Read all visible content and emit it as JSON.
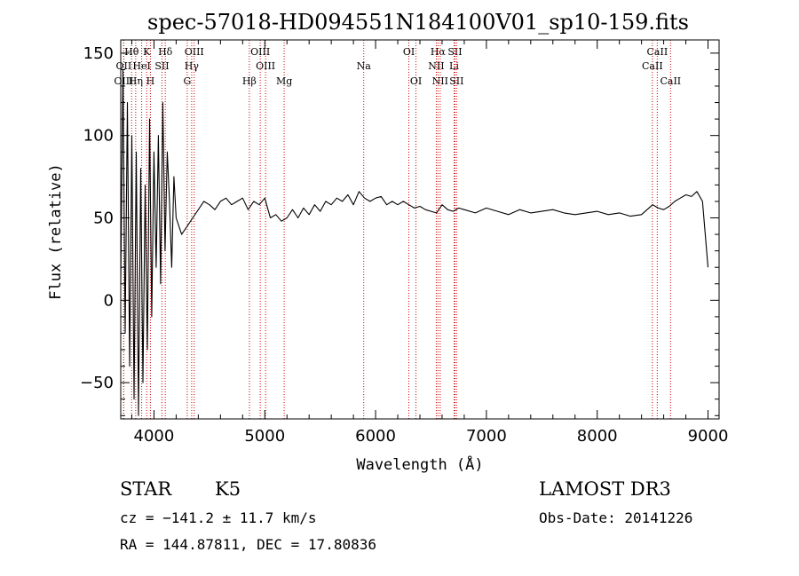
{
  "chart_data": {
    "type": "line",
    "title": "spec-57018-HD094551N184100V01_sp10-159.fits",
    "xlabel": "Wavelength (Å)",
    "ylabel": "Flux (relative)",
    "xlim": [
      3700,
      9100
    ],
    "ylim": [
      -72,
      158
    ],
    "xticks": [
      4000,
      5000,
      6000,
      7000,
      8000,
      9000
    ],
    "yticks": [
      -50,
      0,
      50,
      100,
      150
    ],
    "grid": false,
    "legend": "none",
    "line_color": "#000000",
    "marker_color": "#cc0000",
    "series": [
      {
        "x": [
          3700,
          3720,
          3740,
          3760,
          3780,
          3800,
          3820,
          3840,
          3860,
          3880,
          3900,
          3920,
          3940,
          3960,
          3980,
          4000,
          4020,
          4040,
          4060,
          4080,
          4100,
          4120,
          4140,
          4160,
          4180,
          4200,
          4250,
          4300,
          4350,
          4400,
          4450,
          4500,
          4550,
          4600,
          4650,
          4700,
          4750,
          4800,
          4850,
          4900,
          4950,
          5000,
          5050,
          5100,
          5150,
          5200,
          5250,
          5300,
          5350,
          5400,
          5450,
          5500,
          5550,
          5600,
          5650,
          5700,
          5750,
          5800,
          5850,
          5900,
          5950,
          6000,
          6050,
          6100,
          6150,
          6200,
          6250,
          6300,
          6350,
          6400,
          6450,
          6500,
          6550,
          6600,
          6650,
          6700,
          6750,
          6800,
          6900,
          7000,
          7100,
          7200,
          7300,
          7400,
          7500,
          7600,
          7700,
          7800,
          7900,
          8000,
          8100,
          8200,
          8300,
          8400,
          8450,
          8500,
          8550,
          8600,
          8650,
          8700,
          8750,
          8800,
          8850,
          8900,
          8950,
          9000
        ],
        "y": [
          10,
          140,
          -20,
          120,
          -40,
          100,
          -60,
          90,
          -70,
          80,
          -50,
          70,
          -30,
          110,
          -10,
          90,
          20,
          100,
          10,
          120,
          30,
          90,
          60,
          20,
          75,
          50,
          40,
          45,
          50,
          55,
          60,
          58,
          55,
          60,
          62,
          58,
          60,
          62,
          55,
          60,
          58,
          62,
          50,
          52,
          48,
          50,
          55,
          50,
          56,
          52,
          58,
          54,
          60,
          58,
          62,
          60,
          64,
          58,
          66,
          62,
          60,
          62,
          63,
          58,
          60,
          58,
          60,
          58,
          56,
          57,
          55,
          54,
          53,
          58,
          55,
          54,
          56,
          55,
          53,
          56,
          54,
          52,
          55,
          53,
          54,
          55,
          53,
          52,
          53,
          54,
          52,
          53,
          51,
          52,
          55,
          58,
          56,
          55,
          57,
          60,
          62,
          64,
          63,
          66,
          60,
          20
        ]
      }
    ],
    "line_markers": [
      {
        "label": "Hθ",
        "row": 1,
        "x": 3798
      },
      {
        "label": "K",
        "row": 1,
        "x": 3934
      },
      {
        "label": "Hδ",
        "row": 1,
        "x": 4102
      },
      {
        "label": "OIII",
        "row": 1,
        "x": 4363
      },
      {
        "label": "OIII",
        "row": 1,
        "x": 4959
      },
      {
        "label": "OI",
        "row": 1,
        "x": 6300
      },
      {
        "label": "Hα",
        "row": 1,
        "x": 6563
      },
      {
        "label": "SII",
        "row": 1,
        "x": 6716
      },
      {
        "label": "CaII",
        "row": 1,
        "x": 8542
      },
      {
        "label": "OII",
        "row": 2,
        "x": 3727
      },
      {
        "label": "HeI",
        "row": 2,
        "x": 3889
      },
      {
        "label": "SII",
        "row": 2,
        "x": 4072
      },
      {
        "label": "Hγ",
        "row": 2,
        "x": 4340
      },
      {
        "label": "OIII",
        "row": 2,
        "x": 5007
      },
      {
        "label": "Na",
        "row": 2,
        "x": 5893
      },
      {
        "label": "NII",
        "row": 2,
        "x": 6548
      },
      {
        "label": "Li",
        "row": 2,
        "x": 6708
      },
      {
        "label": "CaII",
        "row": 2,
        "x": 8498
      },
      {
        "label": "OIII",
        "row": 3,
        "x": 3727
      },
      {
        "label": "Hη",
        "row": 3,
        "x": 3835
      },
      {
        "label": "H",
        "row": 3,
        "x": 3968
      },
      {
        "label": "G",
        "row": 3,
        "x": 4300
      },
      {
        "label": "Hβ",
        "row": 3,
        "x": 4861
      },
      {
        "label": "Mg",
        "row": 3,
        "x": 5175
      },
      {
        "label": "OI",
        "row": 3,
        "x": 6364
      },
      {
        "label": "NII",
        "row": 3,
        "x": 6583
      },
      {
        "label": "SII",
        "row": 3,
        "x": 6731
      },
      {
        "label": "CaII",
        "row": 3,
        "x": 8662
      }
    ]
  },
  "info": {
    "object_class": "STAR",
    "subclass": "K5",
    "survey": "LAMOST DR3",
    "redshift": "cz = −141.2 ± 11.7 km/s",
    "obs_date": "Obs-Date: 20141226",
    "coords": "RA = 144.87811, DEC =  17.80836"
  }
}
